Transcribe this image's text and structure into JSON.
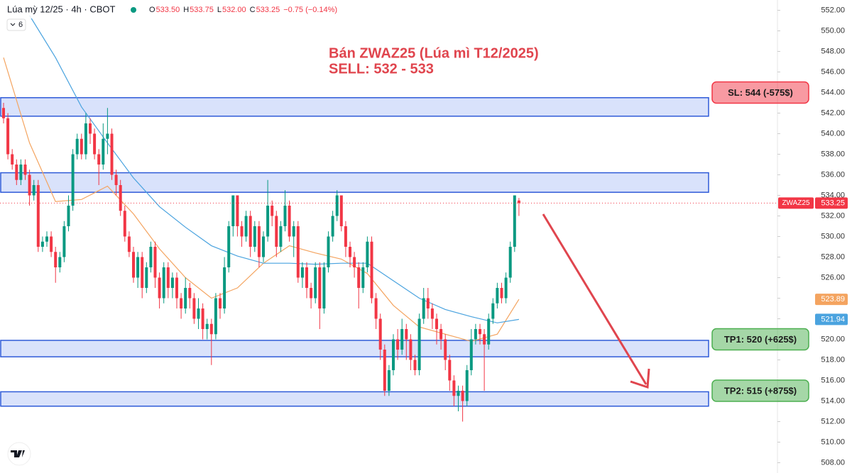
{
  "chart_data": {
    "type": "candlestick",
    "symbol": "Lúa mỳ 12/25 · 4h · CBOT",
    "indicator_count": "6",
    "ohlc_header": [
      {
        "key": "O",
        "value": "533.50"
      },
      {
        "key": "H",
        "value": "533.75"
      },
      {
        "key": "L",
        "value": "532.00"
      },
      {
        "key": "C",
        "value": "533.25"
      }
    ],
    "change": "−0.75 (−0.14%)",
    "annotation": [
      "Bán ZWAZ25 (Lúa mì T12/2025)",
      "SELL: 532 - 533"
    ],
    "ticker": "ZWAZ25",
    "up_color": "#089981",
    "down_color": "#f23645",
    "open": [
      542.5,
      541.5,
      538,
      537,
      535.5,
      537,
      536,
      534,
      535,
      529,
      529.5,
      530,
      528.5,
      527,
      528,
      531,
      533,
      538,
      539.5,
      538,
      541,
      540,
      538,
      537,
      539.5,
      540,
      536,
      535,
      532.5,
      530,
      528.5,
      526,
      528,
      525,
      527,
      529,
      526,
      524,
      527,
      525,
      526,
      524,
      523,
      525,
      524,
      522,
      523,
      521,
      521.5,
      520.5,
      524,
      523,
      527,
      531,
      534,
      531,
      530,
      532,
      529,
      531,
      528,
      530,
      533,
      532,
      529,
      531,
      533,
      530,
      531,
      526,
      527,
      525,
      524,
      527,
      523,
      527,
      530,
      532,
      534,
      531,
      529,
      528,
      527,
      525,
      527,
      529.5,
      524,
      522,
      519,
      515,
      517,
      520,
      519,
      521,
      520,
      518,
      517,
      522,
      524,
      523,
      522,
      521,
      520,
      518,
      516,
      514.5,
      515,
      514,
      517,
      520,
      521,
      520.5,
      519.5,
      522,
      523.5,
      525,
      524,
      526,
      529,
      533.5
    ],
    "high": [
      543,
      542,
      538.5,
      537.5,
      537.5,
      537.5,
      536.5,
      535.5,
      535.5,
      530,
      530.5,
      530.5,
      529,
      528.5,
      531.5,
      534,
      538.5,
      540,
      540,
      542,
      541.5,
      540.5,
      538.5,
      541,
      542.5,
      540.5,
      536.5,
      535.5,
      533,
      530.5,
      529,
      528.5,
      528.5,
      527.5,
      529.5,
      529.5,
      526.5,
      527.5,
      527.5,
      526.5,
      526.5,
      524.5,
      526,
      525.5,
      524.5,
      524,
      523.5,
      522,
      522,
      524.5,
      524.5,
      528,
      531.5,
      534,
      534,
      531.5,
      532.5,
      532.5,
      531.5,
      531.5,
      530.5,
      535.5,
      533.5,
      532.5,
      531.5,
      534.5,
      533.5,
      531.5,
      531.5,
      527.5,
      527.5,
      525.5,
      527.5,
      527.5,
      527.5,
      530.5,
      532.5,
      534.5,
      534,
      531.5,
      529.5,
      528.5,
      527.5,
      527.5,
      530,
      530,
      524.5,
      522.5,
      519.5,
      517.5,
      520.5,
      521,
      522,
      521.5,
      520.5,
      518.5,
      522.5,
      525,
      525,
      523.5,
      522.5,
      521.5,
      520.5,
      518.5,
      516.5,
      515.5,
      515.5,
      517.5,
      521,
      521.5,
      521.5,
      521,
      522.5,
      524,
      525.5,
      525.5,
      526.5,
      529.5,
      534,
      533.75
    ],
    "low": [
      541,
      537.5,
      536.5,
      535,
      535,
      535.5,
      533,
      533.5,
      528.5,
      528.5,
      529,
      528,
      525.5,
      526.5,
      527.5,
      530.5,
      532.5,
      537.5,
      537.5,
      537.5,
      539,
      537.5,
      535,
      536.5,
      538,
      535.5,
      534,
      532,
      529.5,
      528,
      525.5,
      525,
      524,
      524.5,
      526.5,
      525,
      523,
      523.5,
      524,
      524,
      523,
      522,
      522.5,
      523,
      521.5,
      521,
      520,
      520,
      517.5,
      520,
      522,
      522.5,
      526.5,
      530,
      530,
      529,
      529.5,
      528,
      528.5,
      527,
      527.5,
      529.5,
      531,
      528,
      528.5,
      530.5,
      529.5,
      528,
      525.5,
      525,
      524,
      523,
      523.5,
      521,
      522.5,
      526.5,
      529.5,
      531.5,
      530.5,
      528,
      527,
      526,
      523,
      524.5,
      526.5,
      523.5,
      521,
      518,
      514.5,
      514.5,
      516.5,
      518,
      518.5,
      518,
      517,
      516.5,
      516.5,
      521.5,
      522,
      521,
      519.5,
      519,
      517,
      515,
      513.5,
      513,
      512,
      513.5,
      516.5,
      519.5,
      519.5,
      515,
      519,
      521.5,
      523,
      523.5,
      523.5,
      525.5,
      528.5,
      532
    ],
    "close": [
      541.5,
      538,
      537,
      535.5,
      537,
      536,
      534,
      535,
      529,
      529.5,
      530,
      528.5,
      527,
      528,
      531,
      533,
      538,
      539.5,
      538,
      541,
      540,
      538,
      537,
      539.5,
      540,
      536,
      535,
      532.5,
      530,
      528.5,
      526,
      528,
      525,
      527,
      529,
      526,
      524,
      527,
      525,
      526,
      524,
      523,
      525,
      524,
      522,
      523,
      521,
      521.5,
      520.5,
      524,
      523,
      527,
      531,
      534,
      531,
      530,
      532,
      529,
      531,
      528,
      530,
      533,
      532,
      529,
      531,
      533,
      530,
      531,
      526,
      527,
      525,
      524,
      527,
      523,
      527,
      530,
      532,
      534,
      531,
      529,
      528,
      527,
      525,
      527,
      529.5,
      524,
      522,
      519,
      515,
      517,
      520,
      519,
      521,
      520,
      518,
      517,
      522,
      524,
      523,
      522,
      521,
      520,
      518,
      516,
      514.5,
      515,
      514,
      517,
      520,
      521,
      520.5,
      519.5,
      522,
      523.5,
      525,
      524,
      526,
      529,
      534,
      533.25
    ],
    "ma_x": [
      0,
      6,
      12,
      18,
      24,
      30,
      36,
      42,
      48,
      54,
      60,
      66,
      72,
      78,
      84,
      90,
      96,
      102,
      108,
      114,
      119
    ],
    "series": [
      {
        "color": "#f4a460",
        "values": [
          547.4,
          539.1,
          533.4,
          533.6,
          534.9,
          532.2,
          528.8,
          526,
          524,
          525,
          527.4,
          529.1,
          528.4,
          527.8,
          526.4,
          523.3,
          521.2,
          520.5,
          519.8,
          520.5,
          523.89
        ]
      },
      {
        "color": "#4aa3df",
        "values": [
          null,
          551.5,
          547.4,
          542.6,
          539.1,
          535.7,
          532.9,
          530.9,
          529.1,
          528.1,
          527.4,
          527.4,
          527.3,
          527.4,
          527.4,
          525.7,
          524,
          522.9,
          522.2,
          521.6,
          521.94
        ]
      }
    ],
    "zones": [
      {
        "low": 541.7,
        "high": 543.5,
        "level": 544,
        "label": "SL: 544 (-575$)",
        "label_color": "#f23645"
      },
      {
        "low": 534.3,
        "high": 536.2
      },
      {
        "low": 518.3,
        "high": 519.9,
        "level": 520,
        "label": "TP1: 520 (+625$)",
        "label_color": "#4caf50"
      },
      {
        "low": 513.5,
        "high": 514.9,
        "level": 515,
        "label": "TP2: 515 (+875$)",
        "label_color": "#4caf50"
      }
    ],
    "ylim": [
      507,
      553
    ],
    "yticks": [
      {
        "value": 508,
        "label": "508.00"
      },
      {
        "value": 510,
        "label": "510.00"
      },
      {
        "value": 512,
        "label": "512.00"
      },
      {
        "value": 514,
        "label": "514.00"
      },
      {
        "value": 516,
        "label": "516.00"
      },
      {
        "value": 518,
        "label": "518.00"
      },
      {
        "value": 520,
        "label": "520.00"
      },
      {
        "value": 522,
        "label": "522.00"
      },
      {
        "value": 524,
        "label": "524.00"
      },
      {
        "value": 526,
        "label": "526.00"
      },
      {
        "value": 528,
        "label": "528.00"
      },
      {
        "value": 530,
        "label": "530.00"
      },
      {
        "value": 532,
        "label": "532.00"
      },
      {
        "value": 534,
        "label": "534.00"
      },
      {
        "value": 536,
        "label": "536.00"
      },
      {
        "value": 538,
        "label": "538.00"
      },
      {
        "value": 540,
        "label": "540.00"
      },
      {
        "value": 542,
        "label": "542.00"
      },
      {
        "value": 544,
        "label": "544.00"
      },
      {
        "value": 546,
        "label": "546.00"
      },
      {
        "value": 548,
        "label": "548.00"
      },
      {
        "value": 550,
        "label": "550.00"
      },
      {
        "value": 552,
        "label": "552.00"
      }
    ]
  }
}
